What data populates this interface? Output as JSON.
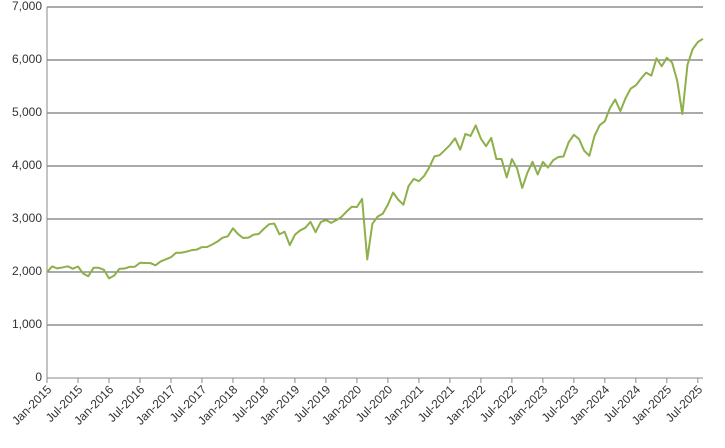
{
  "chart_data": {
    "type": "line",
    "x": [
      "2015-01",
      "2015-02",
      "2015-03",
      "2015-04",
      "2015-05",
      "2015-06",
      "2015-07",
      "2015-08",
      "2015-09",
      "2015-10",
      "2015-11",
      "2015-12",
      "2016-01",
      "2016-02",
      "2016-03",
      "2016-04",
      "2016-05",
      "2016-06",
      "2016-07",
      "2016-08",
      "2016-09",
      "2016-10",
      "2016-11",
      "2016-12",
      "2017-01",
      "2017-02",
      "2017-03",
      "2017-04",
      "2017-05",
      "2017-06",
      "2017-07",
      "2017-08",
      "2017-09",
      "2017-10",
      "2017-11",
      "2017-12",
      "2018-01",
      "2018-02",
      "2018-03",
      "2018-04",
      "2018-05",
      "2018-06",
      "2018-07",
      "2018-08",
      "2018-09",
      "2018-10",
      "2018-11",
      "2018-12",
      "2019-01",
      "2019-02",
      "2019-03",
      "2019-04",
      "2019-05",
      "2019-06",
      "2019-07",
      "2019-08",
      "2019-09",
      "2019-10",
      "2019-11",
      "2019-12",
      "2020-01",
      "2020-02",
      "2020-03",
      "2020-04",
      "2020-05",
      "2020-06",
      "2020-07",
      "2020-08",
      "2020-09",
      "2020-10",
      "2020-11",
      "2020-12",
      "2021-01",
      "2021-02",
      "2021-03",
      "2021-04",
      "2021-05",
      "2021-06",
      "2021-07",
      "2021-08",
      "2021-09",
      "2021-10",
      "2021-11",
      "2021-12",
      "2022-01",
      "2022-02",
      "2022-03",
      "2022-04",
      "2022-05",
      "2022-06",
      "2022-07",
      "2022-08",
      "2022-09",
      "2022-10",
      "2022-11",
      "2022-12",
      "2023-01",
      "2023-02",
      "2023-03",
      "2023-04",
      "2023-05",
      "2023-06",
      "2023-07",
      "2023-08",
      "2023-09",
      "2023-10",
      "2023-11",
      "2023-12",
      "2024-01",
      "2024-02",
      "2024-03",
      "2024-04",
      "2024-05",
      "2024-06",
      "2024-07",
      "2024-08",
      "2024-09",
      "2024-10",
      "2024-11",
      "2024-12",
      "2025-01",
      "2025-02",
      "2025-03",
      "2025-04",
      "2025-05",
      "2025-06",
      "2025-07",
      "2025-08"
    ],
    "values": [
      2000,
      2104,
      2068,
      2086,
      2107,
      2063,
      2104,
      1972,
      1920,
      2079,
      2080,
      2044,
      1880,
      1932,
      2060,
      2065,
      2097,
      2099,
      2174,
      2171,
      2168,
      2126,
      2199,
      2239,
      2279,
      2364,
      2363,
      2384,
      2412,
      2423,
      2470,
      2472,
      2519,
      2575,
      2648,
      2674,
      2824,
      2714,
      2641,
      2648,
      2705,
      2718,
      2816,
      2902,
      2914,
      2712,
      2760,
      2507,
      2704,
      2784,
      2834,
      2946,
      2752,
      2942,
      2980,
      2926,
      2977,
      3038,
      3141,
      3231,
      3226,
      3380,
      2237,
      2912,
      3044,
      3100,
      3271,
      3500,
      3363,
      3270,
      3622,
      3756,
      3714,
      3811,
      3973,
      4181,
      4204,
      4298,
      4395,
      4523,
      4308,
      4605,
      4567,
      4766,
      4516,
      4374,
      4530,
      4132,
      4132,
      3785,
      4130,
      3955,
      3586,
      3872,
      4080,
      3840,
      4077,
      3970,
      4109,
      4169,
      4180,
      4450,
      4589,
      4508,
      4288,
      4194,
      4568,
      4770,
      4846,
      5096,
      5254,
      5036,
      5278,
      5460,
      5522,
      5648,
      5762,
      5705,
      6032,
      5882,
      6041,
      5955,
      5612,
      4982,
      5912,
      6205,
      6339,
      6400
    ],
    "color": "#8db04a",
    "xlim": [
      "2015-01",
      "2025-08"
    ],
    "xticks": [
      {
        "value": "2015-01",
        "label": "Jan-2015"
      },
      {
        "value": "2015-07",
        "label": "Jul-2015"
      },
      {
        "value": "2016-01",
        "label": "Jan-2016"
      },
      {
        "value": "2016-07",
        "label": "Jul-2016"
      },
      {
        "value": "2017-01",
        "label": "Jan-2017"
      },
      {
        "value": "2017-07",
        "label": "Jul-2017"
      },
      {
        "value": "2018-01",
        "label": "Jan-2018"
      },
      {
        "value": "2018-07",
        "label": "Jul-2018"
      },
      {
        "value": "2019-01",
        "label": "Jan-2019"
      },
      {
        "value": "2019-07",
        "label": "Jul-2019"
      },
      {
        "value": "2020-01",
        "label": "Jan-2020"
      },
      {
        "value": "2020-07",
        "label": "Jul-2020"
      },
      {
        "value": "2021-01",
        "label": "Jan-2021"
      },
      {
        "value": "2021-07",
        "label": "Jul-2021"
      },
      {
        "value": "2022-01",
        "label": "Jan-2022"
      },
      {
        "value": "2022-07",
        "label": "Jul-2022"
      },
      {
        "value": "2023-01",
        "label": "Jan-2023"
      },
      {
        "value": "2023-07",
        "label": "Jul-2023"
      },
      {
        "value": "2024-01",
        "label": "Jan-2024"
      },
      {
        "value": "2024-07",
        "label": "Jul-2024"
      },
      {
        "value": "2025-01",
        "label": "Jan-2025"
      },
      {
        "value": "2025-07",
        "label": "Jul-2025"
      }
    ],
    "ylim": [
      0,
      7000
    ],
    "yticks": [
      0,
      {
        "value": 1000,
        "label": "1,000"
      },
      {
        "value": 2000,
        "label": "2,000"
      },
      {
        "value": 3000,
        "label": "3,000"
      },
      {
        "value": 4000,
        "label": "4,000"
      },
      {
        "value": 5000,
        "label": "5,000"
      },
      {
        "value": 6000,
        "label": "6,000"
      },
      {
        "value": 7000,
        "label": "7,000"
      }
    ],
    "grid": true
  }
}
